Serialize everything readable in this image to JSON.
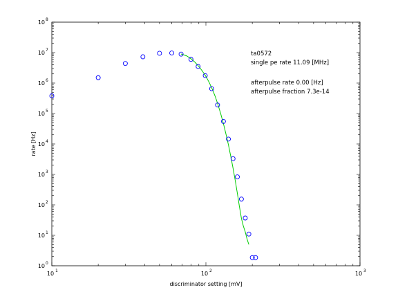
{
  "chart_data": {
    "type": "scatter",
    "title": "",
    "xlabel": "discriminator setting [mV]",
    "ylabel": "rate [Hz]",
    "xscale": "log",
    "yscale": "log",
    "xlim": [
      10,
      1000
    ],
    "ylim": [
      1,
      100000000
    ],
    "x_ticks": [
      {
        "value": 10,
        "base": "10",
        "exp": "1"
      },
      {
        "value": 100,
        "base": "10",
        "exp": "2"
      },
      {
        "value": 1000,
        "base": "10",
        "exp": "3"
      }
    ],
    "y_ticks": [
      {
        "value": 1,
        "base": "10",
        "exp": "0"
      },
      {
        "value": 10,
        "base": "10",
        "exp": "1"
      },
      {
        "value": 100,
        "base": "10",
        "exp": "2"
      },
      {
        "value": 1000,
        "base": "10",
        "exp": "3"
      },
      {
        "value": 10000,
        "base": "10",
        "exp": "4"
      },
      {
        "value": 100000,
        "base": "10",
        "exp": "5"
      },
      {
        "value": 1000000,
        "base": "10",
        "exp": "6"
      },
      {
        "value": 10000000,
        "base": "10",
        "exp": "7"
      },
      {
        "value": 100000000,
        "base": "10",
        "exp": "8"
      }
    ],
    "grid": false,
    "series": [
      {
        "style": "markers",
        "marker": "circle",
        "color": "#0000ff",
        "x": [
          10,
          20,
          30,
          39,
          50,
          60,
          69,
          80,
          89,
          99,
          109,
          119,
          130,
          140,
          150,
          160,
          170,
          180,
          190,
          200,
          210
        ],
        "y": [
          380000,
          1500000,
          4400000,
          7300000,
          9500000,
          9700000,
          8900000,
          6000000,
          3500000,
          1750000,
          650000,
          190000,
          55000,
          14500,
          3300,
          830,
          155,
          37,
          11,
          1.85,
          1.85
        ]
      },
      {
        "style": "line",
        "color": "#00cc00",
        "x": [
          69,
          75,
          80,
          85,
          90,
          95,
          100,
          105,
          110,
          115,
          120,
          125,
          130,
          135,
          140,
          145,
          150,
          155,
          160,
          165,
          170,
          175,
          180,
          185,
          190
        ],
        "y": [
          9000000,
          7800000,
          6300000,
          4800000,
          3500000,
          2450000,
          1650000,
          1050000,
          630000,
          360000,
          190000,
          95000,
          46000,
          21000,
          9400,
          3900,
          1600,
          630,
          240,
          88,
          36,
          20,
          13,
          7.5,
          5
        ]
      }
    ],
    "annotations": {
      "id_label": "ta0572",
      "single_pe_rate": "single pe rate 11.09 [MHz]",
      "afterpulse_rate": "afterpulse rate 0.00 [Hz]",
      "afterpulse_fraction": "afterpulse fraction 7.3e-14"
    }
  }
}
